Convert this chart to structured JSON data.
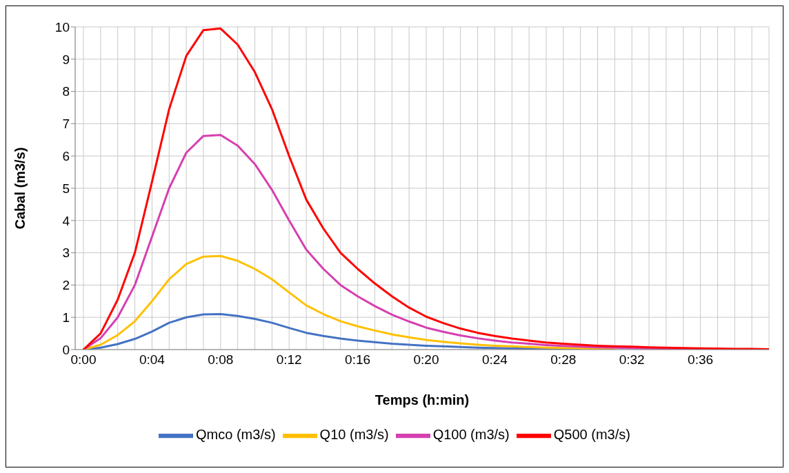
{
  "chart_data": {
    "type": "line",
    "xlabel": "Temps (h:min)",
    "ylabel": "Cabal (m3/s)",
    "categories": [
      "0:00",
      null,
      null,
      null,
      "0:04",
      null,
      null,
      null,
      "0:08",
      null,
      null,
      null,
      "0:12",
      null,
      null,
      null,
      "0:16",
      null,
      null,
      null,
      "0:20",
      null,
      null,
      null,
      "0:24",
      null,
      null,
      null,
      "0:28",
      null,
      null,
      null,
      "0:32",
      null,
      null,
      null,
      "0:36",
      null,
      null,
      null,
      null
    ],
    "series": [
      {
        "name": "Qmco (m3/s)",
        "color": "#4472c4",
        "values": [
          0,
          0.06,
          0.17,
          0.33,
          0.56,
          0.83,
          1.0,
          1.09,
          1.1,
          1.04,
          0.95,
          0.83,
          0.67,
          0.52,
          0.42,
          0.34,
          0.28,
          0.23,
          0.18,
          0.15,
          0.12,
          0.1,
          0.08,
          0.06,
          0.05,
          0.04,
          0.03,
          0.03,
          0.02,
          0.02,
          null,
          null,
          null,
          null,
          null,
          null,
          null,
          null,
          null,
          null,
          null
        ]
      },
      {
        "name": "Q10 (m3/s)",
        "color": "#ffc000",
        "values": [
          0,
          0.15,
          0.45,
          0.88,
          1.5,
          2.18,
          2.65,
          2.88,
          2.9,
          2.75,
          2.5,
          2.18,
          1.77,
          1.37,
          1.1,
          0.88,
          0.72,
          0.59,
          0.47,
          0.38,
          0.3,
          0.24,
          0.19,
          0.15,
          0.12,
          0.1,
          0.08,
          0.06,
          0.05,
          0.04,
          0.03,
          0.03,
          null,
          null,
          null,
          null,
          null,
          null,
          null,
          null,
          null
        ]
      },
      {
        "name": "Q100 (m3/s)",
        "color": "#d63fb0",
        "values": [
          0,
          0.35,
          1.0,
          2.0,
          3.5,
          5.0,
          6.1,
          6.62,
          6.65,
          6.32,
          5.75,
          4.95,
          4.0,
          3.1,
          2.5,
          2.0,
          1.65,
          1.35,
          1.08,
          0.87,
          0.68,
          0.55,
          0.44,
          0.35,
          0.28,
          0.22,
          0.18,
          0.14,
          0.11,
          0.09,
          0.07,
          0.06,
          0.05,
          0.04,
          0.03,
          0.03,
          0.02,
          null,
          null,
          null,
          null
        ]
      },
      {
        "name": "Q500 (m3/s)",
        "color": "#ff0000",
        "values": [
          0,
          0.5,
          1.55,
          3.0,
          5.2,
          7.45,
          9.1,
          9.9,
          9.95,
          9.45,
          8.6,
          7.45,
          6.0,
          4.65,
          3.75,
          3.0,
          2.5,
          2.05,
          1.65,
          1.3,
          1.02,
          0.82,
          0.65,
          0.52,
          0.42,
          0.34,
          0.28,
          0.22,
          0.18,
          0.15,
          0.12,
          0.1,
          0.09,
          0.07,
          0.06,
          0.05,
          0.04,
          0.03,
          0.02,
          0.02,
          0.01
        ]
      }
    ],
    "ylim": [
      0,
      10
    ],
    "yticks": [
      0,
      1,
      2,
      3,
      4,
      5,
      6,
      7,
      8,
      9,
      10
    ],
    "grid": true,
    "legend": "bottom",
    "marker": "none",
    "line_style": "solid"
  }
}
